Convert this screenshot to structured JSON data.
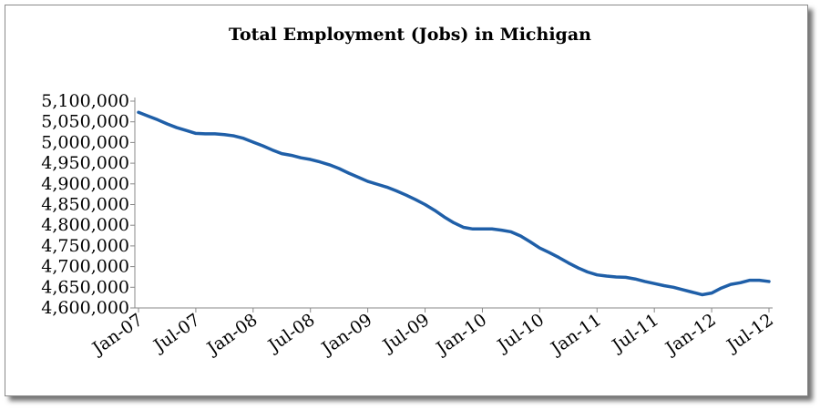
{
  "chart_data": {
    "type": "line",
    "title": "Total Employment (Jobs) in Michigan",
    "xlabel": "",
    "ylabel": "",
    "ylim": [
      4600000,
      5100000
    ],
    "yticks": [
      4600000,
      4650000,
      4700000,
      4750000,
      4800000,
      4850000,
      4900000,
      4950000,
      5000000,
      5050000,
      5100000
    ],
    "ytick_labels": [
      "4,600,000",
      "4,650,000",
      "4,700,000",
      "4,750,000",
      "4,800,000",
      "4,850,000",
      "4,900,000",
      "4,950,000",
      "5,000,000",
      "5,050,000",
      "5,100,000"
    ],
    "xtick_labels": [
      "Jan-07",
      "Jul-07",
      "Jan-08",
      "Jul-08",
      "Jan-09",
      "Jul-09",
      "Jan-10",
      "Jul-10",
      "Jan-11",
      "Jul-11",
      "Jan-12",
      "Jul-12"
    ],
    "grid": false,
    "legend": "none",
    "line_color": "#1f5fa8",
    "series": [
      {
        "x": [
          "Jan-07",
          "Feb-07",
          "Mar-07",
          "Apr-07",
          "May-07",
          "Jun-07",
          "Jul-07",
          "Aug-07",
          "Sep-07",
          "Oct-07",
          "Nov-07",
          "Dec-07",
          "Jan-08",
          "Feb-08",
          "Mar-08",
          "Apr-08",
          "May-08",
          "Jun-08",
          "Jul-08",
          "Aug-08",
          "Sep-08",
          "Oct-08",
          "Nov-08",
          "Dec-08",
          "Jan-09",
          "Feb-09",
          "Mar-09",
          "Apr-09",
          "May-09",
          "Jun-09",
          "Jul-09",
          "Aug-09",
          "Sep-09",
          "Oct-09",
          "Nov-09",
          "Dec-09",
          "Jan-10",
          "Feb-10",
          "Mar-10",
          "Apr-10",
          "May-10",
          "Jun-10",
          "Jul-10",
          "Aug-10",
          "Sep-10",
          "Oct-10",
          "Nov-10",
          "Dec-10",
          "Jan-11",
          "Feb-11",
          "Mar-11",
          "Apr-11",
          "May-11",
          "Jun-11",
          "Jul-11",
          "Aug-11",
          "Sep-11",
          "Oct-11",
          "Nov-11",
          "Dec-11",
          "Jan-12",
          "Feb-12",
          "Mar-12",
          "Apr-12",
          "May-12",
          "Jun-12",
          "Jul-12"
        ],
        "values": [
          5073000,
          5064000,
          5055000,
          5045000,
          5036000,
          5029000,
          5022000,
          5021000,
          5021000,
          5019000,
          5016000,
          5010000,
          5001000,
          4992000,
          4982000,
          4973000,
          4969000,
          4963000,
          4959000,
          4953000,
          4946000,
          4937000,
          4926000,
          4916000,
          4906000,
          4899000,
          4892000,
          4883000,
          4873000,
          4862000,
          4850000,
          4836000,
          4820000,
          4806000,
          4795000,
          4791000,
          4791000,
          4791000,
          4788000,
          4784000,
          4774000,
          4760000,
          4745000,
          4734000,
          4722000,
          4709000,
          4697000,
          4687000,
          4680000,
          4677000,
          4675000,
          4674000,
          4670000,
          4664000,
          4659000,
          4654000,
          4650000,
          4644000,
          4638000,
          4632000,
          4636000,
          4648000,
          4657000,
          4661000,
          4667000,
          4667000,
          4664000
        ]
      }
    ]
  }
}
